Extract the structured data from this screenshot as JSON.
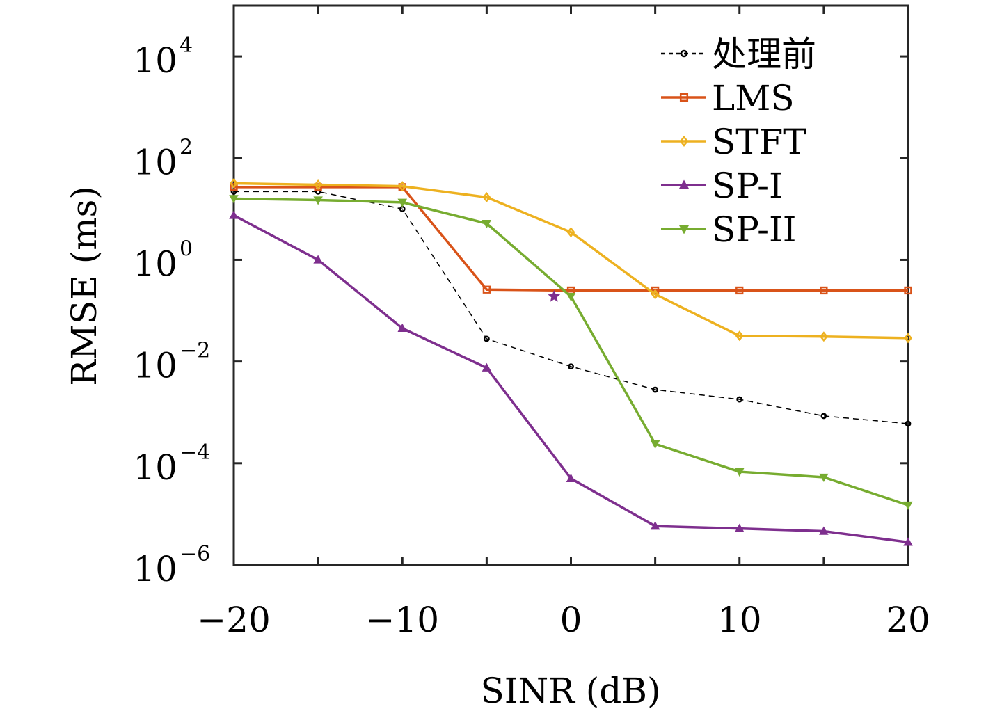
{
  "chart_data": {
    "type": "line",
    "xlabel": "SINR (dB)",
    "ylabel": "RMSE (ms)",
    "x": [
      -20,
      -15,
      -10,
      -5,
      0,
      5,
      10,
      15,
      20
    ],
    "xlim": [
      -20,
      20
    ],
    "ylim": [
      1e-06,
      100000
    ],
    "yscale": "log",
    "xticks": [
      -20,
      -10,
      0,
      10,
      20
    ],
    "xtick_labels": [
      "−20",
      "−10",
      "0",
      "10",
      "20"
    ],
    "yticks": [
      {
        "value": 1e-06,
        "base": "10",
        "exp": "−6"
      },
      {
        "value": 0.0001,
        "base": "10",
        "exp": "−4"
      },
      {
        "value": 0.01,
        "base": "10",
        "exp": "−2"
      },
      {
        "value": 1,
        "base": "10",
        "exp": "0"
      },
      {
        "value": 100,
        "base": "10",
        "exp": "2"
      },
      {
        "value": 10000,
        "base": "10",
        "exp": "4"
      }
    ],
    "grid": false,
    "legend_position": "top-right",
    "series": [
      {
        "name": "处理前",
        "color": "#000000",
        "dash": "dashed",
        "marker": "circle",
        "values": [
          22,
          22,
          10,
          0.028,
          0.008,
          0.0028,
          0.0018,
          0.00085,
          0.0006
        ]
      },
      {
        "name": "LMS",
        "color": "#D95319",
        "dash": "solid",
        "marker": "square",
        "values": [
          27,
          27,
          27,
          0.26,
          0.25,
          0.25,
          0.25,
          0.25,
          0.25
        ]
      },
      {
        "name": "STFT",
        "color": "#EDB120",
        "dash": "solid",
        "marker": "diamond",
        "values": [
          32,
          30,
          28,
          17,
          3.5,
          0.21,
          0.032,
          0.031,
          0.029
        ]
      },
      {
        "name": "SP-I",
        "color": "#7E2F8E",
        "dash": "solid",
        "marker": "triangle-up",
        "values": [
          7.5,
          1.0,
          0.045,
          0.0075,
          5e-05,
          5.8e-06,
          5.2e-06,
          4.6e-06,
          2.8e-06
        ]
      },
      {
        "name": "SP-II",
        "color": "#77AC30",
        "dash": "solid",
        "marker": "triangle-down",
        "values": [
          16,
          15,
          13.5,
          5.2,
          0.19,
          0.00024,
          6.8e-05,
          5.3e-05,
          1.5e-05
        ]
      }
    ],
    "annotations": [
      {
        "x": -1,
        "y": 0.19,
        "marker": "star",
        "color": "#7E2F8E"
      }
    ]
  }
}
